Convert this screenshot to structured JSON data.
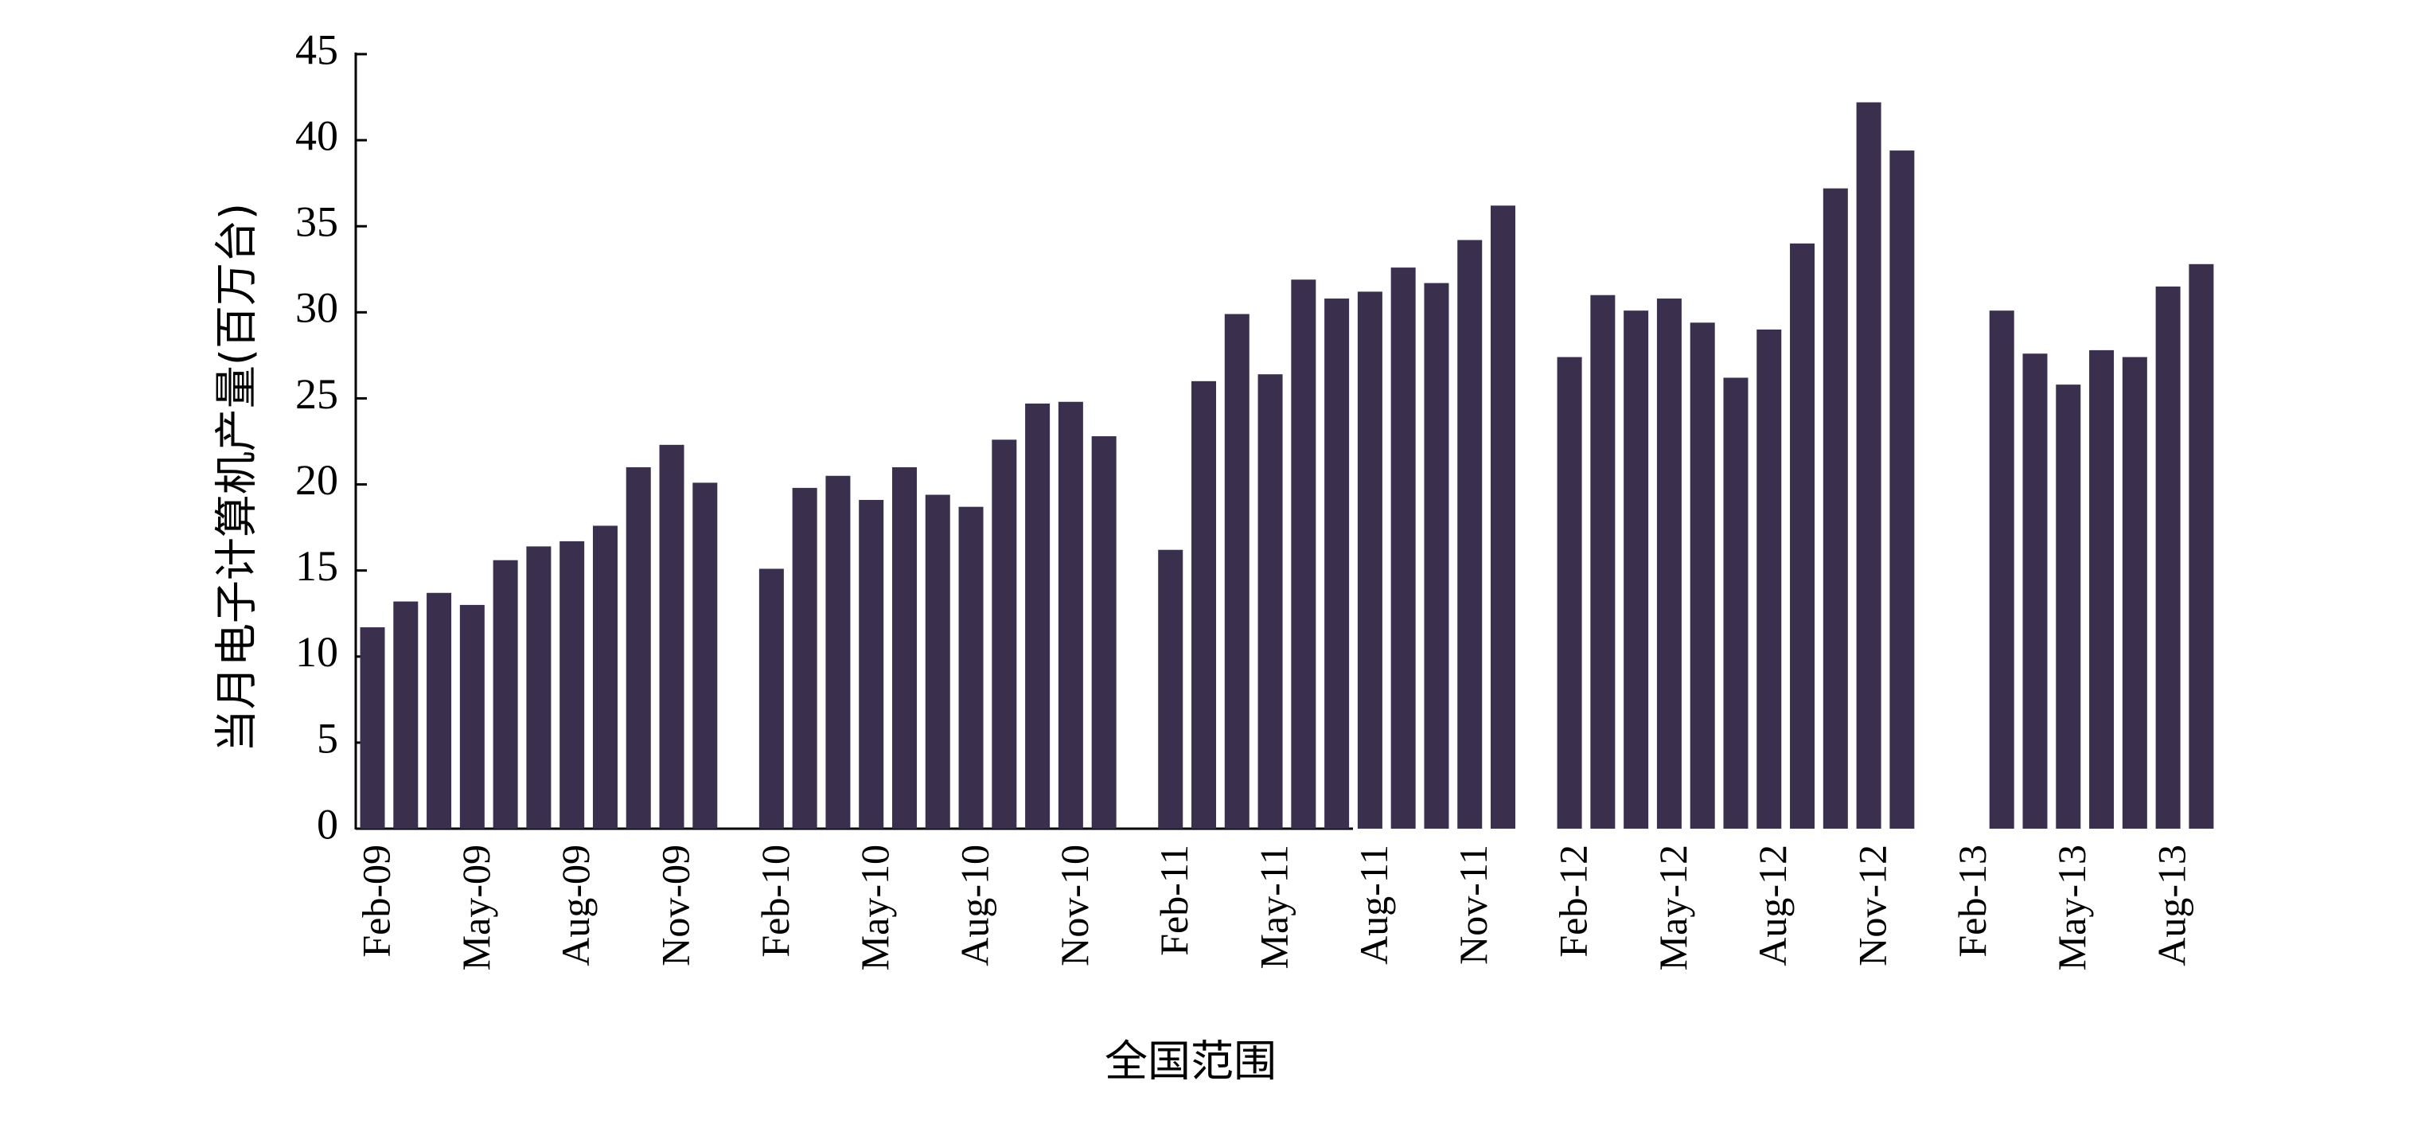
{
  "chart_data": {
    "type": "bar",
    "x_label": "全国范围",
    "y_label": "当月电子计算机产量(百万台)",
    "color": "#3b2f4e",
    "categories": [
      "Feb-09",
      null,
      null,
      "May-09",
      null,
      null,
      "Aug-09",
      null,
      null,
      "Nov-09",
      null,
      null,
      "Feb-10",
      null,
      null,
      "May-10",
      null,
      null,
      "Aug-10",
      null,
      null,
      "Nov-10",
      null,
      null,
      "Feb-11",
      null,
      null,
      "May-11",
      null,
      null,
      "Aug-11",
      null,
      null,
      "Nov-11",
      null,
      null,
      "Feb-12",
      null,
      null,
      "May-12",
      null,
      null,
      "Aug-12",
      null,
      null,
      "Nov-12",
      null,
      null,
      "Feb-13",
      null,
      null,
      "May-13",
      null,
      null,
      "Aug-13",
      null
    ],
    "values": [
      11.7,
      13.2,
      13.7,
      13.0,
      15.6,
      16.4,
      16.7,
      17.6,
      21.0,
      22.3,
      20.1,
      null,
      15.1,
      19.8,
      20.5,
      19.1,
      21.0,
      19.4,
      18.7,
      22.6,
      24.7,
      24.8,
      22.8,
      null,
      16.2,
      26.0,
      29.9,
      26.4,
      31.9,
      30.8,
      31.2,
      32.6,
      31.7,
      34.2,
      36.2,
      null,
      27.4,
      31.0,
      30.1,
      30.8,
      29.4,
      26.2,
      29.0,
      34.0,
      37.2,
      42.2,
      39.4,
      null,
      null,
      30.1,
      27.6,
      25.8,
      27.8,
      27.4,
      31.5,
      32.8
    ],
    "ylim": [
      0,
      45
    ],
    "yticks": [
      0,
      5,
      10,
      15,
      20,
      25,
      30,
      35,
      40,
      45
    ]
  }
}
